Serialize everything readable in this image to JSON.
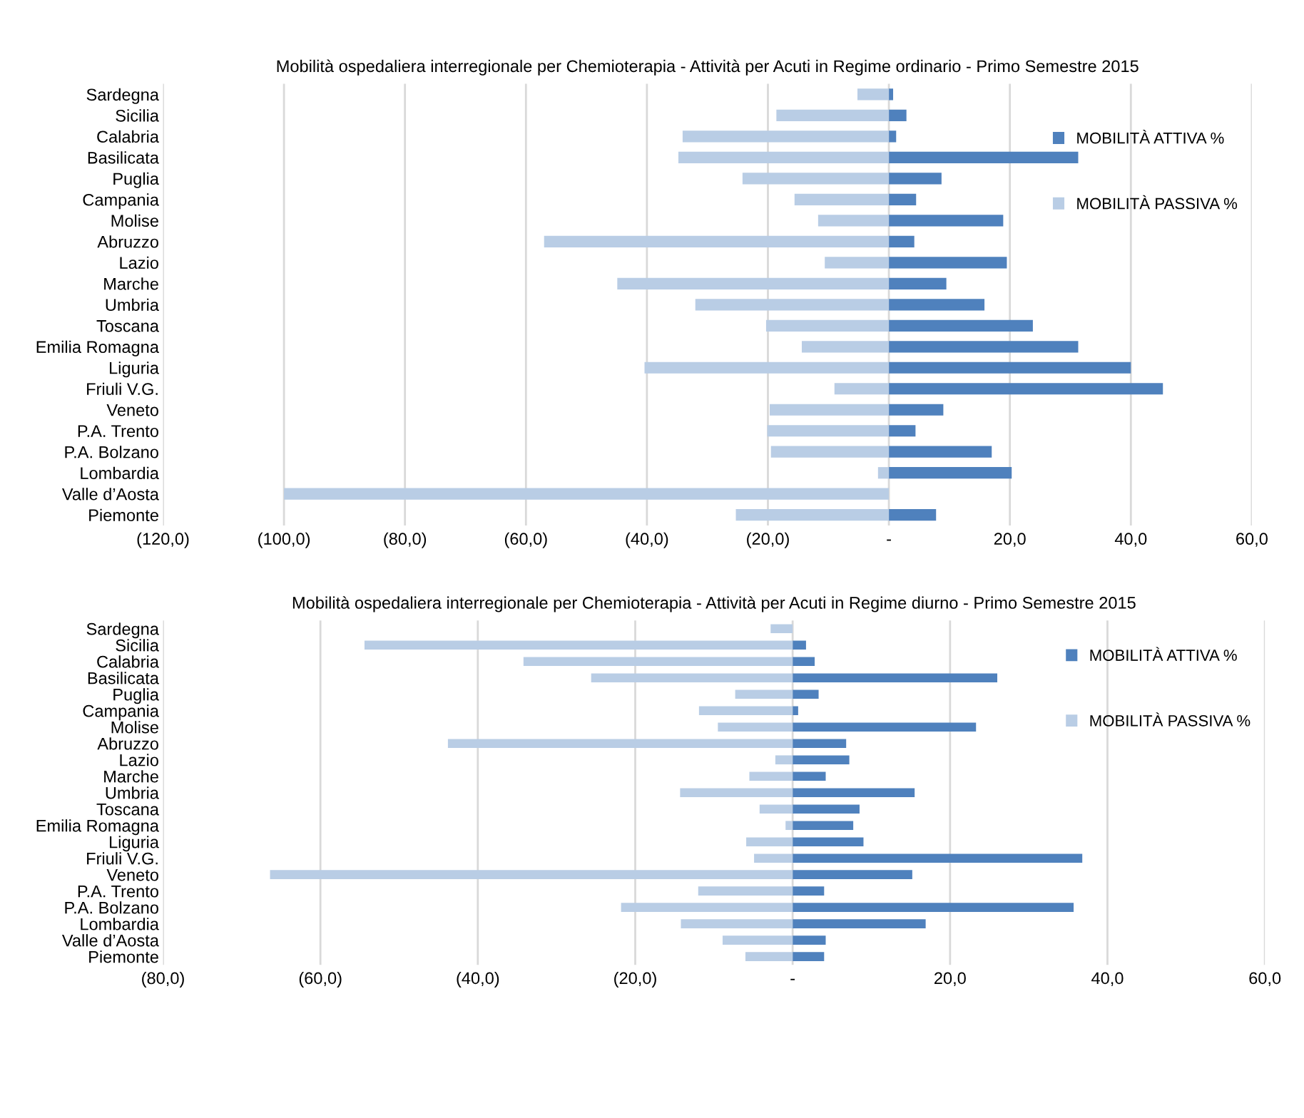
{
  "chart_data": [
    {
      "type": "bar",
      "orientation": "horizontal",
      "title": "Mobilità ospedaliera interregionale per Chemioterapia - Attività per Acuti in Regime ordinario - Primo Semestre 2015",
      "categories": [
        "Sardegna",
        "Sicilia",
        "Calabria",
        "Basilicata",
        "Puglia",
        "Campania",
        "Molise",
        "Abruzzo",
        "Lazio",
        "Marche",
        "Umbria",
        "Toscana",
        "Emilia Romagna",
        "Liguria",
        "Friuli V.G.",
        "Veneto",
        "P.A. Trento",
        "P.A. Bolzano",
        "Lombardia",
        "Valle d’Aosta",
        "Piemonte"
      ],
      "series": [
        {
          "name": "MOBILITÀ ATTIVA %",
          "color": "#4f81bd",
          "values": [
            0.7,
            2.9,
            1.2,
            31.3,
            8.7,
            4.5,
            18.9,
            4.2,
            19.5,
            9.5,
            15.8,
            23.8,
            31.3,
            40.0,
            45.3,
            9.0,
            4.4,
            17.0,
            20.3,
            null,
            7.8
          ]
        },
        {
          "name": "MOBILITÀ PASSIVA %",
          "color": "#b9cde5",
          "values": [
            -5.2,
            -18.6,
            -34.1,
            -34.8,
            -24.2,
            -15.6,
            -11.7,
            -57.0,
            -10.6,
            -44.9,
            -32.0,
            -20.3,
            -14.4,
            -40.4,
            -9.0,
            -19.7,
            -20.1,
            -19.5,
            -1.8,
            -100.0,
            -25.3
          ]
        }
      ],
      "xlim": [
        -120,
        60
      ],
      "xticks": [
        {
          "value": -120,
          "label": "(120,0)"
        },
        {
          "value": -100,
          "label": "(100,0)"
        },
        {
          "value": -80,
          "label": "(80,0)"
        },
        {
          "value": -60,
          "label": "(60,0)"
        },
        {
          "value": -40,
          "label": "(40,0)"
        },
        {
          "value": -20,
          "label": "(20,0)"
        },
        {
          "value": 0,
          "label": "-"
        },
        {
          "value": 20,
          "label": "20,0"
        },
        {
          "value": 40,
          "label": "40,0"
        },
        {
          "value": 60,
          "label": "60,0"
        }
      ],
      "grid": "x",
      "legend": "right",
      "stacked": true
    },
    {
      "type": "bar",
      "orientation": "horizontal",
      "title": "Mobilità ospedaliera interregionale per Chemioterapia - Attività per Acuti in Regime diurno - Primo Semestre 2015",
      "categories": [
        "Sardegna",
        "Sicilia",
        "Calabria",
        "Basilicata",
        "Puglia",
        "Campania",
        "Molise",
        "Abruzzo",
        "Lazio",
        "Marche",
        "Umbria",
        "Toscana",
        "Emilia Romagna",
        "Liguria",
        "Friuli V.G.",
        "Veneto",
        "P.A. Trento",
        "P.A. Bolzano",
        "Lombardia",
        "Valle d’Aosta",
        "Piemonte"
      ],
      "series": [
        {
          "name": "MOBILITÀ ATTIVA %",
          "color": "#4f81bd",
          "values": [
            null,
            1.7,
            2.8,
            26.0,
            3.3,
            0.7,
            23.3,
            6.8,
            7.2,
            4.2,
            15.5,
            8.5,
            7.7,
            9.0,
            36.8,
            15.2,
            4.0,
            35.7,
            16.9,
            4.2,
            4.0
          ]
        },
        {
          "name": "MOBILITÀ PASSIVA %",
          "color": "#b9cde5",
          "values": [
            -2.8,
            -54.4,
            -34.2,
            -25.6,
            -7.3,
            -11.9,
            -9.5,
            -43.8,
            -2.2,
            -5.5,
            -14.3,
            -4.2,
            -0.9,
            -5.9,
            -4.9,
            -66.4,
            -12.0,
            -21.8,
            -14.2,
            -8.9,
            -6.0
          ]
        }
      ],
      "xlim": [
        -80,
        60
      ],
      "xticks": [
        {
          "value": -80,
          "label": "(80,0)"
        },
        {
          "value": -60,
          "label": "(60,0)"
        },
        {
          "value": -40,
          "label": "(40,0)"
        },
        {
          "value": -20,
          "label": "(20,0)"
        },
        {
          "value": 0,
          "label": "-"
        },
        {
          "value": 20,
          "label": "20,0"
        },
        {
          "value": 40,
          "label": "40,0"
        },
        {
          "value": 60,
          "label": "60,0"
        }
      ],
      "grid": "x",
      "legend": "right",
      "stacked": true
    }
  ]
}
